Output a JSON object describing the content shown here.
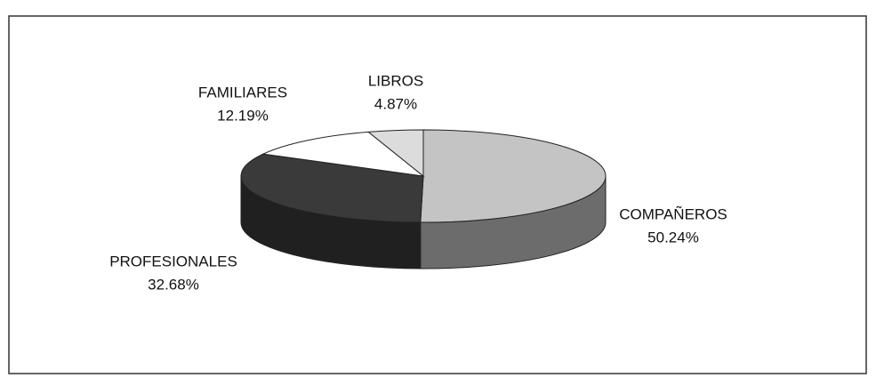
{
  "chart_data": {
    "type": "pie3d",
    "categories": [
      "COMPAÑEROS",
      "PROFESIONALES",
      "FAMILIARES",
      "LIBROS"
    ],
    "values": [
      50.24,
      32.68,
      12.19,
      4.87
    ],
    "value_labels": [
      "50.24%",
      "32.68%",
      "12.19%",
      "4.87%"
    ],
    "colors": [
      "#c4c4c4",
      "#3a3a3a",
      "#ffffff",
      "#dcdcdc"
    ]
  }
}
